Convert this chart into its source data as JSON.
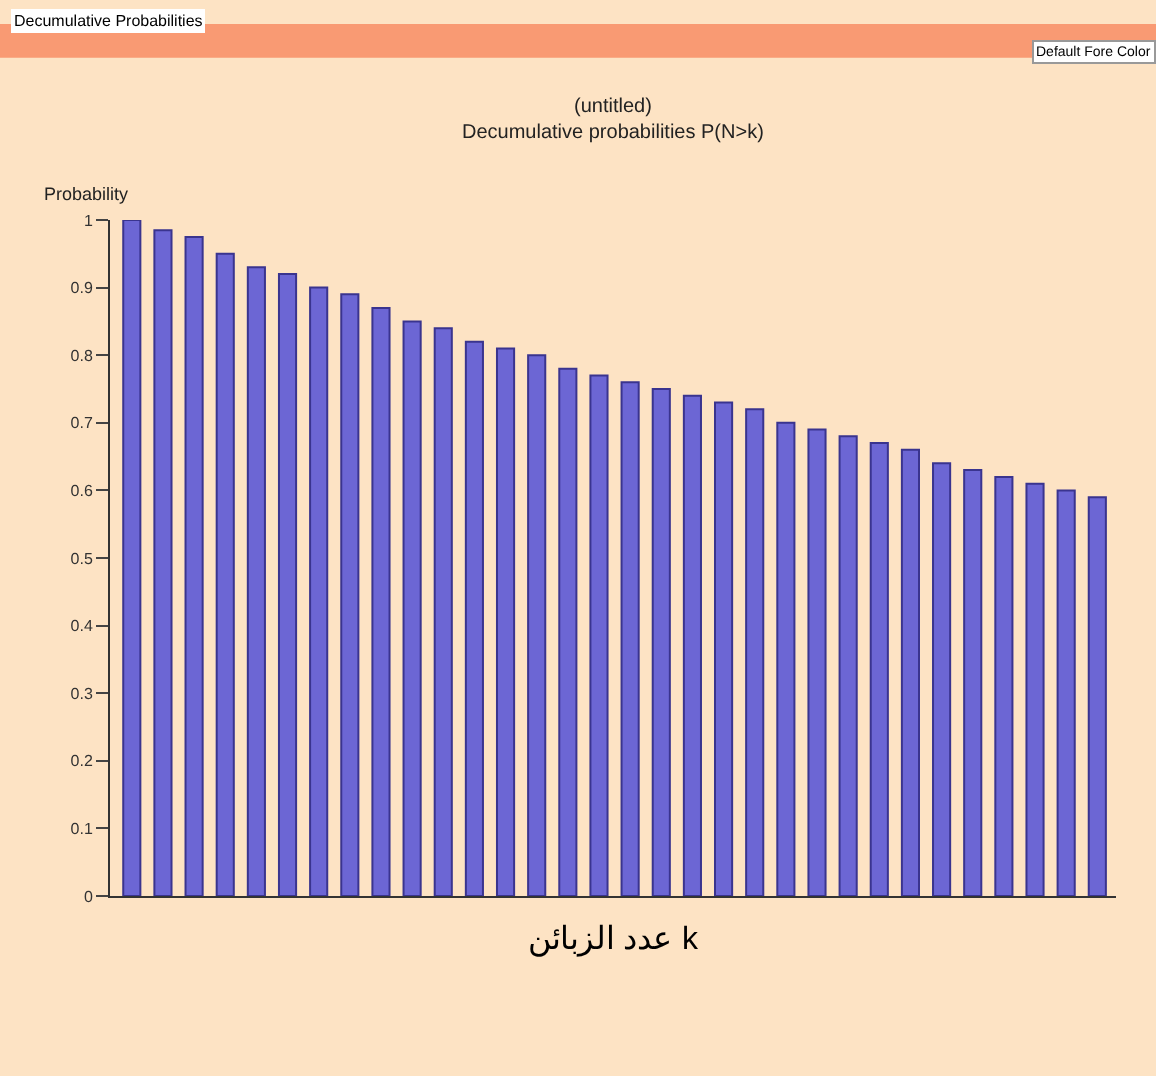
{
  "chart_data": {
    "type": "bar",
    "title": "(untitled)",
    "subtitle": "Decumulative probabilities P(N>k)",
    "ylabel": "Probability",
    "xlabel": "عدد الزبائن k",
    "annotations": [
      "Decumulative Probabilities",
      "Default Fore Color"
    ],
    "categories": [
      null,
      null,
      null,
      null,
      null,
      null,
      null,
      null,
      null,
      null,
      null,
      null,
      null,
      null,
      null,
      null,
      null,
      null,
      null,
      null,
      null,
      null,
      null,
      null,
      null,
      null,
      null,
      null,
      null,
      null,
      null,
      null
    ],
    "values": [
      1,
      0.985,
      0.975,
      0.95,
      0.93,
      0.92,
      0.9,
      0.89,
      0.87,
      0.85,
      0.84,
      0.82,
      0.81,
      0.8,
      0.78,
      0.77,
      0.76,
      0.75,
      0.74,
      0.73,
      0.72,
      0.7,
      0.69,
      0.68,
      0.67,
      0.66,
      0.64,
      0.63,
      0.62,
      0.61,
      0.6,
      0.59
    ],
    "color": "#6c66d4",
    "ylim": [
      0,
      1
    ],
    "yticks": [
      0,
      0.1,
      0.2,
      0.3,
      0.4,
      0.5,
      0.6,
      0.7,
      0.8,
      0.9,
      1
    ],
    "tick_labels": "y",
    "grid": false
  }
}
